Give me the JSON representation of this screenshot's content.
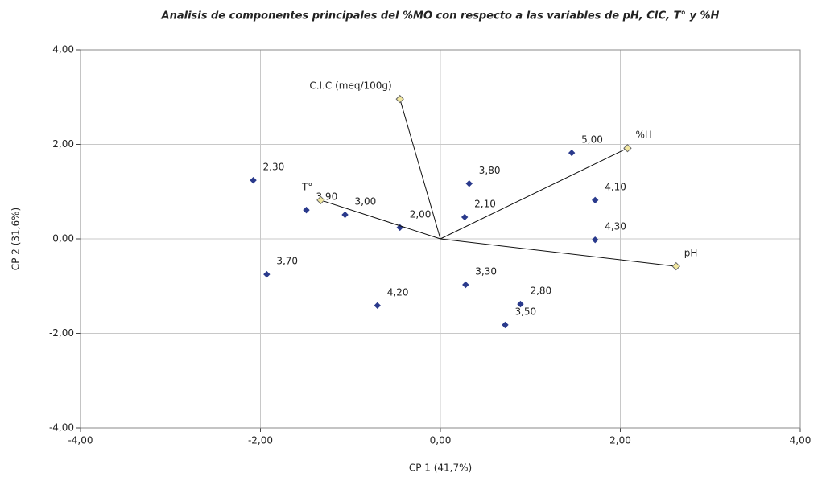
{
  "chart_data": {
    "type": "scatter",
    "title": "Analisis de componentes principales del %MO con respecto a las variables de pH, CIC, T° y %H",
    "x_label": "CP 1 (41,7%)",
    "y_label": "CP 2 (31,6%)",
    "xlim": [
      -4,
      4
    ],
    "ylim": [
      -4,
      4
    ],
    "xticks": [
      {
        "value": -4,
        "label": "-4,00"
      },
      {
        "value": -2,
        "label": "-2,00"
      },
      {
        "value": 0,
        "label": "0,00"
      },
      {
        "value": 2,
        "label": "2,00"
      },
      {
        "value": 4,
        "label": "4,00"
      }
    ],
    "yticks": [
      {
        "value": -4,
        "label": "-4,00"
      },
      {
        "value": -2,
        "label": "-2,00"
      },
      {
        "value": 0,
        "label": "0,00"
      },
      {
        "value": 2,
        "label": "2,00"
      },
      {
        "value": 4,
        "label": "4,00"
      }
    ],
    "grid": true,
    "series": [
      {
        "color": "#2a3a8c",
        "vectors": false,
        "x": [
          -2.08,
          -1.49,
          -1.06,
          -0.45,
          -1.93,
          -0.7,
          0.32,
          0.27,
          1.46,
          1.72,
          1.72,
          0.28,
          0.89,
          0.72
        ],
        "values": [
          1.24,
          0.61,
          0.51,
          0.24,
          -0.75,
          -1.41,
          1.17,
          0.46,
          1.82,
          0.82,
          -0.02,
          -0.97,
          -1.38,
          -1.82
        ],
        "labels": [
          "2,30",
          "3,90",
          "3,00",
          "2,00",
          "3,70",
          "4,20",
          "3,80",
          "2,10",
          "5,00",
          "4,10",
          "4,30",
          "3,30",
          "2,80",
          "3,50"
        ]
      },
      {
        "color": "#f2e8a0",
        "vectors": true,
        "x": [
          -0.45,
          2.08,
          2.62,
          -1.33
        ],
        "values": [
          2.96,
          1.92,
          -0.58,
          0.82
        ],
        "labels": [
          "C.I.C (meq/100g)",
          "%H",
          "pH",
          "T°"
        ]
      }
    ]
  }
}
